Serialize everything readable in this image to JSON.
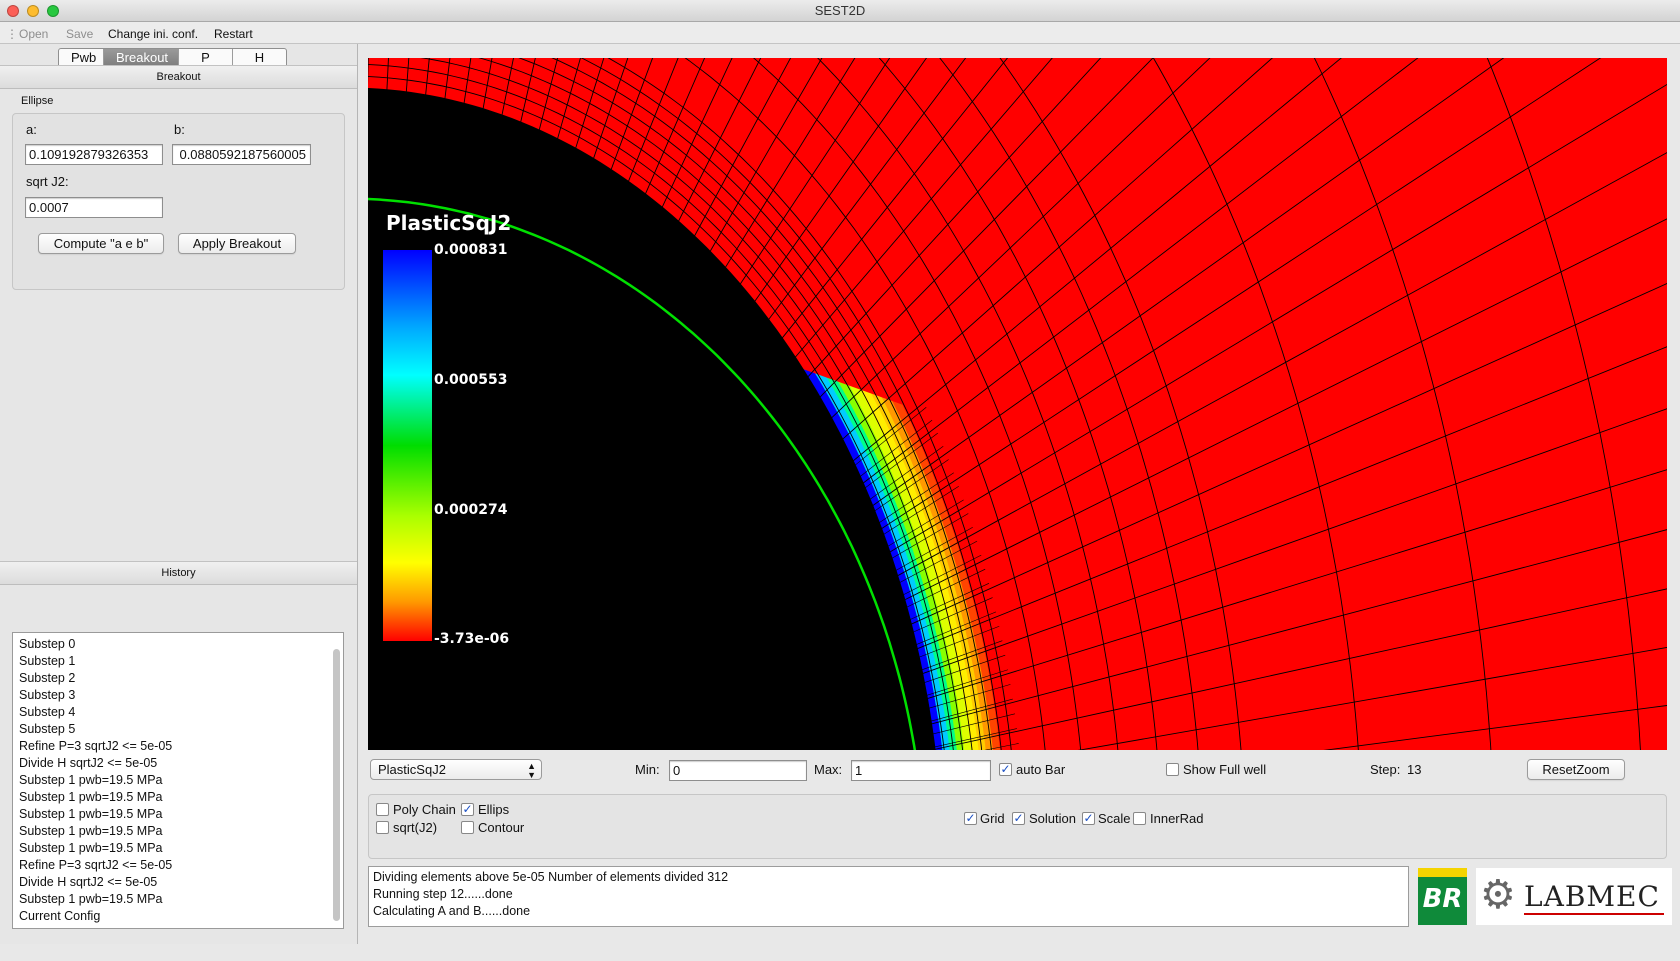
{
  "window": {
    "title": "SEST2D"
  },
  "menu": {
    "open": "Open",
    "save": "Save",
    "change_ini": "Change ini. conf.",
    "restart": "Restart"
  },
  "tabs": [
    {
      "label": "Pwb"
    },
    {
      "label": "Breakout",
      "selected": true
    },
    {
      "label": "P Ref"
    },
    {
      "label": "H Ref"
    }
  ],
  "breakout": {
    "header": "Breakout",
    "group_title": "Ellipse",
    "a_label": "a:",
    "a_value": "0.109192879326353",
    "b_label": "b:",
    "b_value": "0.0880592187560005",
    "sqrtj2_label": "sqrt J2:",
    "sqrtj2_value": "0.0007",
    "compute_label": "Compute \"a e b\"",
    "apply_label": "Apply Breakout"
  },
  "history": {
    "header": "History",
    "items": [
      "Substep 0",
      "Substep 1",
      "Substep 2",
      "Substep 3",
      "Substep 4",
      "Substep 5",
      "Refine P=3 sqrtJ2 <= 5e-05",
      "Divide H sqrtJ2 <= 5e-05",
      "Substep 1 pwb=19.5 MPa",
      "Substep 1 pwb=19.5 MPa",
      "Substep 1 pwb=19.5 MPa",
      "Substep 1 pwb=19.5 MPa",
      "Substep 1 pwb=19.5 MPa",
      "Refine P=3 sqrtJ2 <= 5e-05",
      "Divide H sqrtJ2 <= 5e-05",
      "Substep 1 pwb=19.5 MPa",
      "Current Config"
    ]
  },
  "plot": {
    "legend_title": "PlasticSqJ2",
    "legend_ticks": [
      "0.000831",
      "0.000553",
      "0.000274",
      "-3.73e-06"
    ],
    "background_color": "#ff0000",
    "hole_color": "#000000",
    "ellipse_color": "#00e000"
  },
  "controls": {
    "variable_selected": "PlasticSqJ2",
    "min_label": "Min:",
    "min_value": "0",
    "max_label": "Max:",
    "max_value": "1",
    "autobar_label": "auto Bar",
    "autobar_checked": true,
    "showfull_label": "Show Full well",
    "showfull_checked": false,
    "step_label": "Step:",
    "step_value": "13",
    "resetzoom_label": "ResetZoom"
  },
  "options": {
    "polychain": {
      "label": "Poly Chain",
      "checked": false
    },
    "ellips": {
      "label": "Ellips",
      "checked": true
    },
    "sqrtj2": {
      "label": "sqrt(J2)",
      "checked": false
    },
    "contour": {
      "label": "Contour",
      "checked": false
    },
    "grid": {
      "label": "Grid",
      "checked": true
    },
    "solution": {
      "label": "Solution",
      "checked": true
    },
    "scale": {
      "label": "Scale",
      "checked": true
    },
    "innerrad": {
      "label": "InnerRad",
      "checked": false
    }
  },
  "log": {
    "lines": [
      "Dividing elements above 5e-05 Number of elements divided 312",
      "Running step 12......done",
      "Calculating A and B......done"
    ]
  },
  "logos": {
    "br_text": "BR",
    "labmec_text": "LABMEC"
  }
}
